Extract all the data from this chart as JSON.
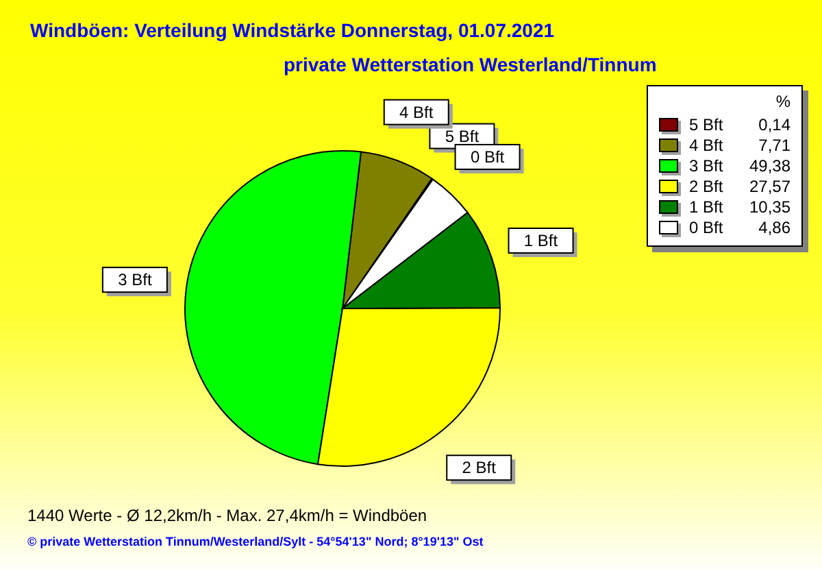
{
  "chart_data": {
    "type": "pie",
    "title": "Windböen: Verteilung Windstärke  Donnerstag, 01.07.2021",
    "subtitle": "private Wetterstation Westerland/Tinnum",
    "categories": [
      "5 Bft",
      "4 Bft",
      "3 Bft",
      "2 Bft",
      "1 Bft",
      "0 Bft"
    ],
    "values": [
      0.14,
      7.71,
      49.38,
      27.57,
      10.35,
      4.86
    ],
    "value_labels": [
      "0,14",
      "7,71",
      "49,38",
      "27,57",
      "10,35",
      "4,86"
    ],
    "colors": [
      "#800000",
      "#808000",
      "#00ff00",
      "#ffff00",
      "#008000",
      "#ffffff"
    ],
    "legend": "top right",
    "legend_title": "%",
    "annotations": [
      "1440 Werte   -   Ø 12,2km/h  -  Max. 27,4km/h = Windböen",
      "© private Wetterstation Tinnum/Westerland/Sylt  -  54°54'13\" Nord; 8°19'13\" Ost"
    ]
  }
}
